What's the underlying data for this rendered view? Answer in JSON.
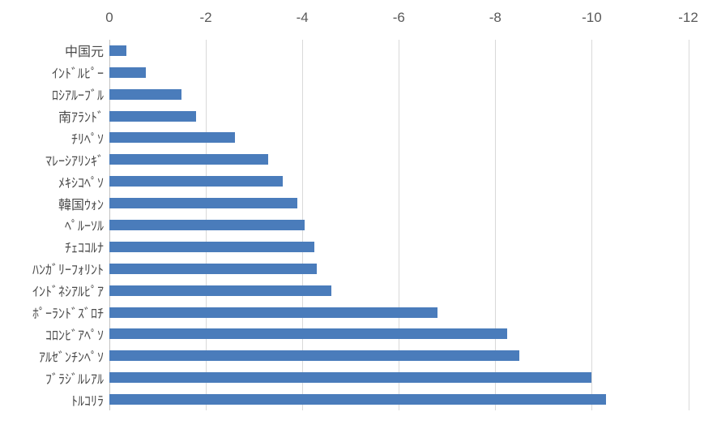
{
  "chart_data": {
    "type": "bar",
    "orientation": "horizontal",
    "title": "",
    "xlabel": "",
    "ylabel": "",
    "categories": [
      "中国元",
      "ｲﾝﾄﾞﾙﾋﾟｰ",
      "ﾛｼｱﾙｰﾌﾞﾙ",
      "南ｱﾗﾝﾄﾞ",
      "ﾁﾘﾍﾟｿ",
      "ﾏﾚｰｼｱﾘﾝｷﾞ",
      "ﾒｷｼｺﾍﾟｿ",
      "韓国ｳｫﾝ",
      "ﾍﾟﾙｰｿﾙ",
      "ﾁｪｺｺﾙﾅ",
      "ﾊﾝｶﾞﾘｰﾌｫﾘﾝﾄ",
      "ｲﾝﾄﾞﾈｼｱﾙﾋﾟｱ",
      "ﾎﾟｰﾗﾝﾄﾞｽﾞﾛﾁ",
      "ｺﾛﾝﾋﾞｱﾍﾟｿ",
      "ｱﾙｾﾞﾝﾁﾝﾍﾟｿ",
      "ﾌﾞﾗｼﾞﾙﾚｱﾙ",
      "ﾄﾙｺﾘﾗ"
    ],
    "values": [
      -0.35,
      -0.75,
      -1.5,
      -1.8,
      -2.6,
      -3.3,
      -3.6,
      -3.9,
      -4.05,
      -4.25,
      -4.3,
      -4.6,
      -6.8,
      -8.25,
      -8.5,
      -10.0,
      -10.3
    ],
    "x_ticks": [
      0,
      -2,
      -4,
      -6,
      -8,
      -10,
      -12
    ],
    "x_tick_labels": [
      "0",
      "-2",
      "-4",
      "-6",
      "-8",
      "-10",
      "-12"
    ],
    "xlim": [
      0,
      -12
    ],
    "tick_position": "top",
    "grid": true,
    "legend": "none",
    "bar_color": "#4a7cbb",
    "gridline_color": "#d9d9d9",
    "axis_line_color": "#c3c3c3",
    "tick_label_color": "#595959",
    "category_label_color": "#4a4a4a",
    "background_color": "#ffffff"
  }
}
